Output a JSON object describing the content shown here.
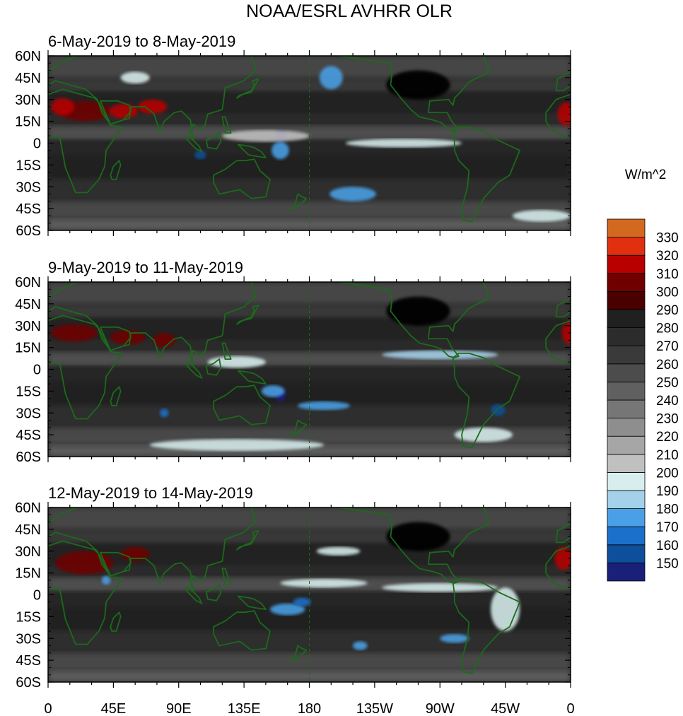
{
  "chart_data": {
    "type": "heatmap",
    "title": "NOAA/ESRL AVHRR OLR",
    "units": "W/m^2",
    "panels": [
      {
        "subtitle": "6-May-2019 to 8-May-2019"
      },
      {
        "subtitle": "9-May-2019 to 11-May-2019"
      },
      {
        "subtitle": "12-May-2019 to 14-May-2019"
      }
    ],
    "x_tick_labels": [
      "0",
      "45E",
      "90E",
      "135E",
      "180",
      "135W",
      "90W",
      "45W",
      "0"
    ],
    "x_range_deg_east": [
      0,
      360
    ],
    "y_tick_labels": [
      "60N",
      "45N",
      "30N",
      "15N",
      "0",
      "15S",
      "30S",
      "45S",
      "60S"
    ],
    "y_range_deg": [
      -60,
      60
    ],
    "colorbar": {
      "labels": [
        "150",
        "160",
        "170",
        "180",
        "190",
        "200",
        "210",
        "220",
        "230",
        "240",
        "250",
        "260",
        "270",
        "280",
        "290",
        "300",
        "310",
        "320",
        "330"
      ],
      "colors": [
        "#1a1f7a",
        "#0d4f9a",
        "#1b70c9",
        "#4aa0e6",
        "#a4d0ea",
        "#d8eeee",
        "#c0c0c0",
        "#a6a6a6",
        "#8e8e8e",
        "#767676",
        "#606060",
        "#4c4c4c",
        "#3a3a3a",
        "#2c2c2c",
        "#202020",
        "#4a0000",
        "#700000",
        "#b80000",
        "#e03010",
        "#d2691e"
      ]
    },
    "map_outline_color": "#1a6b1a",
    "date_line_dashed": true
  }
}
